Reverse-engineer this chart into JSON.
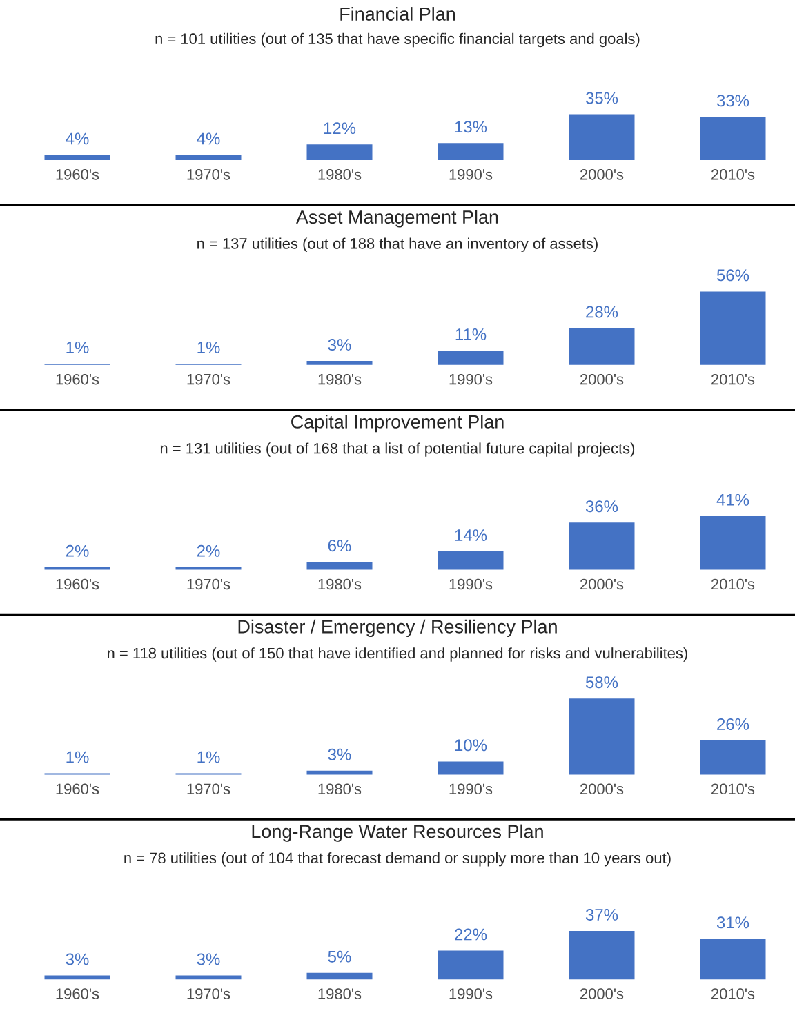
{
  "chart_data": [
    {
      "type": "bar",
      "title": "Financial Plan",
      "subtitle": "n = 101 utilities (out of 135 that have specific financial targets and goals)",
      "categories": [
        "1960's",
        "1970's",
        "1980's",
        "1990's",
        "2000's",
        "2010's"
      ],
      "values": [
        4,
        4,
        12,
        13,
        35,
        33
      ],
      "color": "#4472c4",
      "value_labels": [
        "4%",
        "4%",
        "12%",
        "13%",
        "35%",
        "33%"
      ]
    },
    {
      "type": "bar",
      "title": "Asset Management Plan",
      "subtitle": "n = 137 utilities (out of 188 that have an inventory of assets)",
      "categories": [
        "1960's",
        "1970's",
        "1980's",
        "1990's",
        "2000's",
        "2010's"
      ],
      "values": [
        1,
        1,
        3,
        11,
        28,
        56
      ],
      "color": "#4472c4",
      "value_labels": [
        "1%",
        "1%",
        "3%",
        "11%",
        "28%",
        "56%"
      ]
    },
    {
      "type": "bar",
      "title": "Capital Improvement Plan",
      "subtitle": "n = 131 utilities (out of 168 that a list of potential future capital projects)",
      "categories": [
        "1960's",
        "1970's",
        "1980's",
        "1990's",
        "2000's",
        "2010's"
      ],
      "values": [
        2,
        2,
        6,
        14,
        36,
        41
      ],
      "color": "#4472c4",
      "value_labels": [
        "2%",
        "2%",
        "6%",
        "14%",
        "36%",
        "41%"
      ]
    },
    {
      "type": "bar",
      "title": "Disaster / Emergency / Resiliency Plan",
      "subtitle": "n = 118 utilities (out of 150 that have identified and planned for risks and vulnerabilites)",
      "categories": [
        "1960's",
        "1970's",
        "1980's",
        "1990's",
        "2000's",
        "2010's"
      ],
      "values": [
        1,
        1,
        3,
        10,
        58,
        26
      ],
      "color": "#4472c4",
      "value_labels": [
        "1%",
        "1%",
        "3%",
        "10%",
        "58%",
        "26%"
      ]
    },
    {
      "type": "bar",
      "title": "Long-Range Water Resources Plan",
      "subtitle": "n = 78 utilities (out of 104 that forecast demand or supply more than 10 years out)",
      "categories": [
        "1960's",
        "1970's",
        "1980's",
        "1990's",
        "2000's",
        "2010's"
      ],
      "values": [
        3,
        3,
        5,
        22,
        37,
        31
      ],
      "color": "#4472c4",
      "value_labels": [
        "3%",
        "3%",
        "5%",
        "22%",
        "37%",
        "31%"
      ]
    }
  ]
}
